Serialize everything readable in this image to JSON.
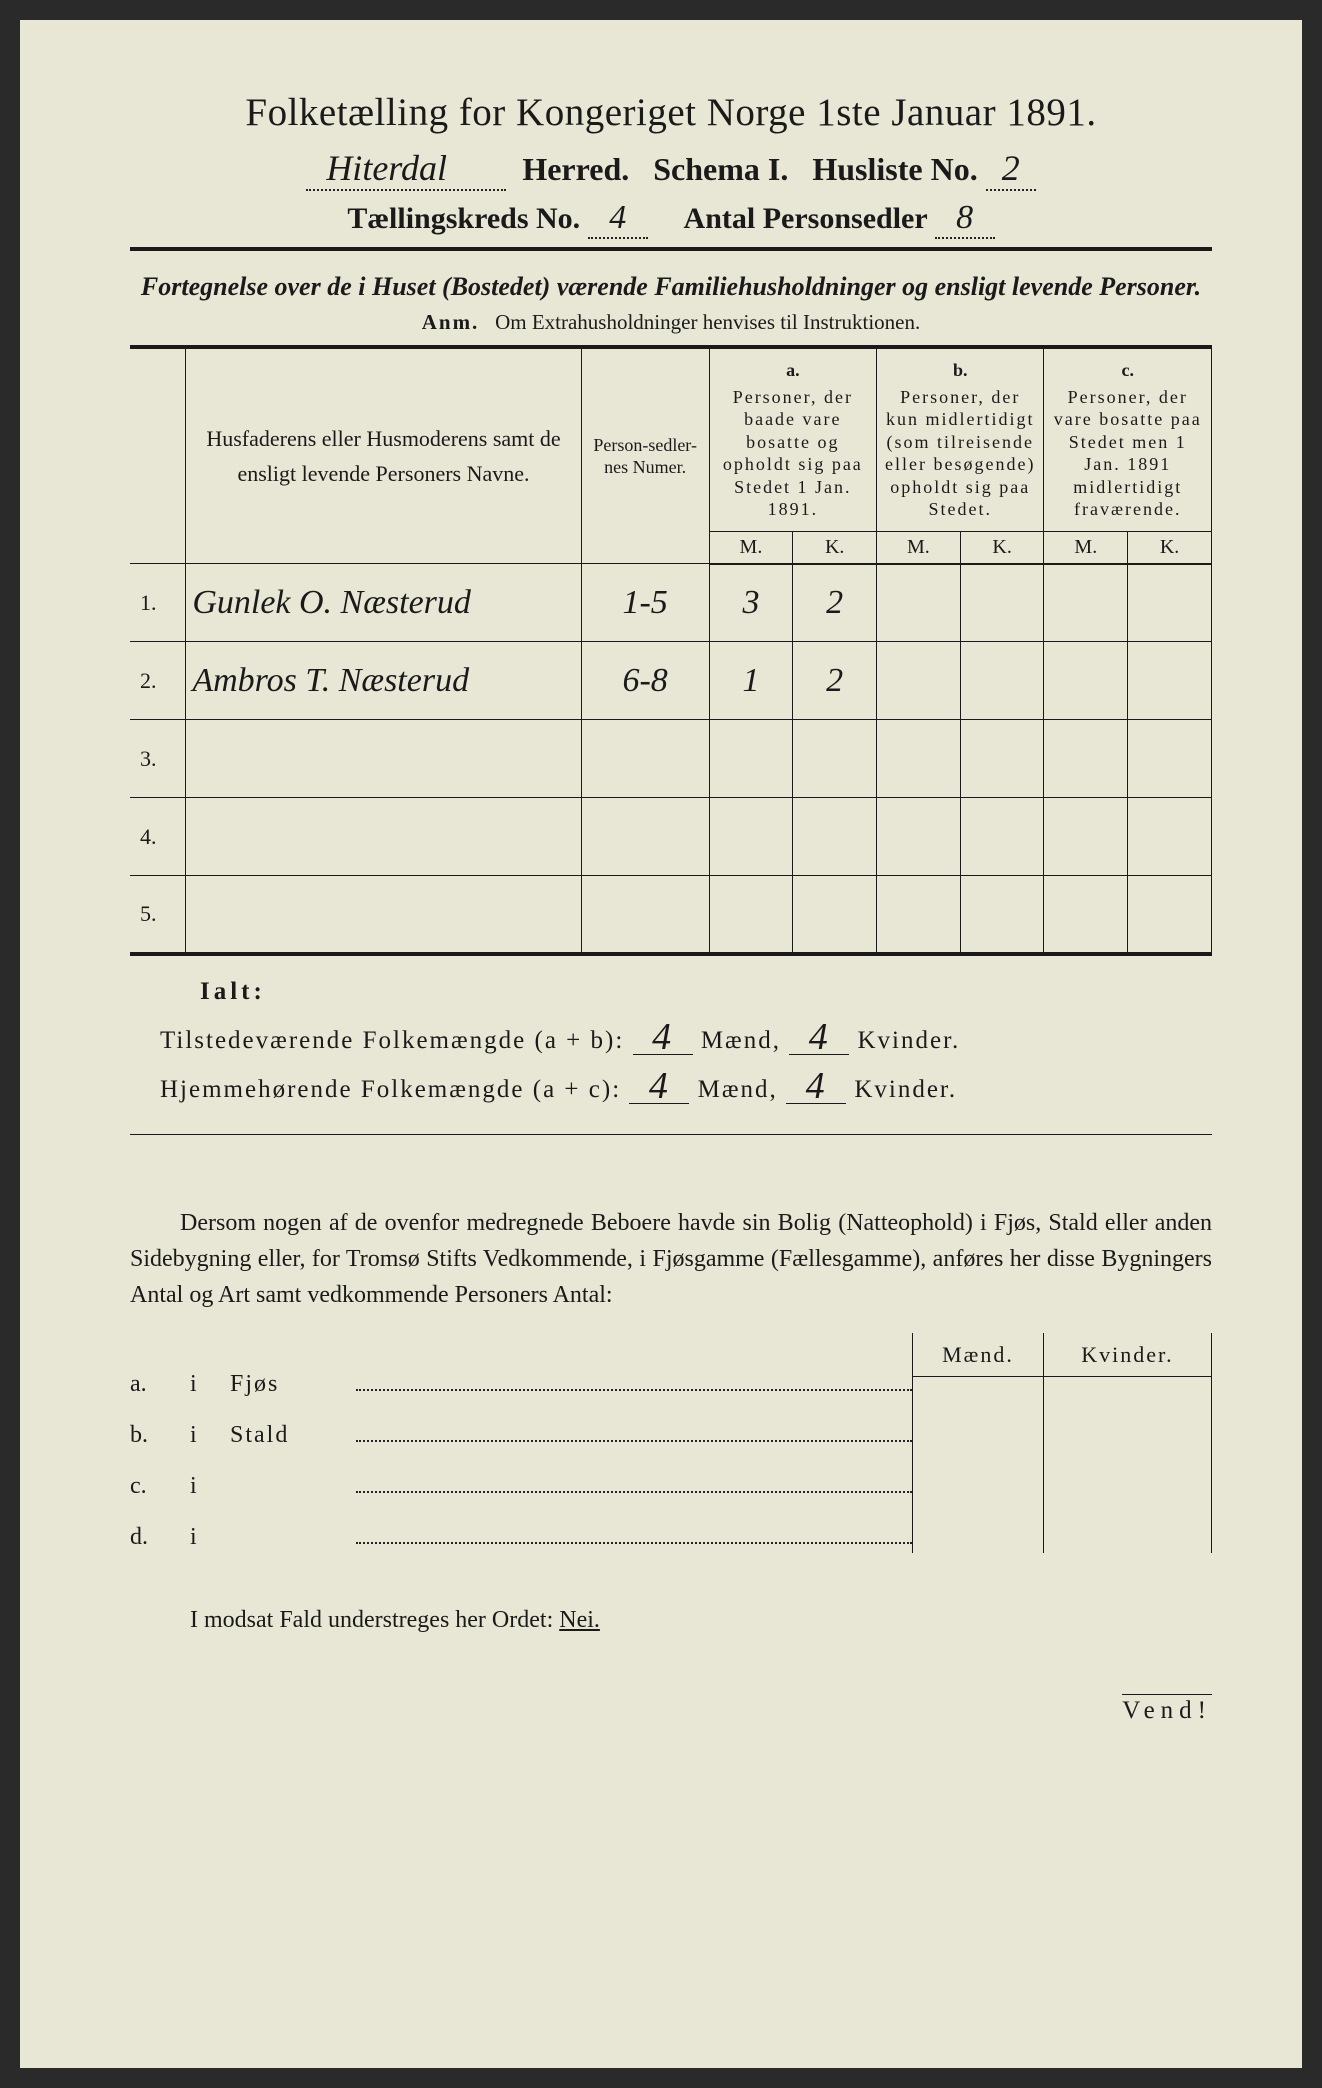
{
  "header": {
    "title": "Folketælling for Kongeriget Norge 1ste Januar 1891.",
    "herred_value": "Hiterdal",
    "herred_label": "Herred.",
    "schema_label": "Schema I.",
    "husliste_label": "Husliste No.",
    "husliste_value": "2",
    "kreds_label": "Tællingskreds No.",
    "kreds_value": "4",
    "personsedler_label": "Antal Personsedler",
    "personsedler_value": "8"
  },
  "fortegnelse": "Fortegnelse over de i Huset (Bostedet) værende Familiehusholdninger og ensligt levende Personer.",
  "anm": {
    "label": "Anm.",
    "text": "Om Extrahusholdninger henvises til Instruktionen."
  },
  "table": {
    "col_names": "Husfaderens eller Husmoderens samt de ensligt levende Personers Navne.",
    "col_sedler": "Person-sedler-nes Numer.",
    "col_a_label": "a.",
    "col_a_text": "Personer, der baade vare bosatte og opholdt sig paa Stedet 1 Jan. 1891.",
    "col_b_label": "b.",
    "col_b_text": "Personer, der kun midlertidigt (som tilreisende eller besøgende) opholdt sig paa Stedet.",
    "col_c_label": "c.",
    "col_c_text": "Personer, der vare bosatte paa Stedet men 1 Jan. 1891 midlertidigt fraværende.",
    "m": "M.",
    "k": "K.",
    "rows": [
      {
        "num": "1.",
        "name": "Gunlek O. Næsterud",
        "sedler": "1-5",
        "am": "3",
        "ak": "2",
        "bm": "",
        "bk": "",
        "cm": "",
        "ck": ""
      },
      {
        "num": "2.",
        "name": "Ambros T. Næsterud",
        "sedler": "6-8",
        "am": "1",
        "ak": "2",
        "bm": "",
        "bk": "",
        "cm": "",
        "ck": ""
      },
      {
        "num": "3.",
        "name": "",
        "sedler": "",
        "am": "",
        "ak": "",
        "bm": "",
        "bk": "",
        "cm": "",
        "ck": ""
      },
      {
        "num": "4.",
        "name": "",
        "sedler": "",
        "am": "",
        "ak": "",
        "bm": "",
        "bk": "",
        "cm": "",
        "ck": ""
      },
      {
        "num": "5.",
        "name": "",
        "sedler": "",
        "am": "",
        "ak": "",
        "bm": "",
        "bk": "",
        "cm": "",
        "ck": ""
      }
    ]
  },
  "ialt": {
    "label": "Ialt:",
    "line1_label": "Tilstedeværende Folkemængde (a + b):",
    "line1_m": "4",
    "line1_k": "4",
    "line2_label": "Hjemmehørende Folkemængde (a + c):",
    "line2_m": "4",
    "line2_k": "4",
    "maend": "Mænd,",
    "kvinder": "Kvinder."
  },
  "dersom": "Dersom nogen af de ovenfor medregnede Beboere havde sin Bolig (Natteophold) i Fjøs, Stald eller anden Sidebygning eller, for Tromsø Stifts Vedkommende, i Fjøsgamme (Fællesgamme), anføres her disse Bygningers Antal og Art samt vedkommende Personers Antal:",
  "bolig": {
    "mk_m": "Mænd.",
    "mk_k": "Kvinder.",
    "rows": [
      {
        "l": "a.",
        "i": "i",
        "t": "Fjøs"
      },
      {
        "l": "b.",
        "i": "i",
        "t": "Stald"
      },
      {
        "l": "c.",
        "i": "i",
        "t": ""
      },
      {
        "l": "d.",
        "i": "i",
        "t": ""
      }
    ]
  },
  "modsat": {
    "text": "I modsat Fald understreges her Ordet:",
    "nei": "Nei."
  },
  "vend": "Vend!",
  "colors": {
    "paper": "#e8e6d4",
    "ink": "#1a1a1a",
    "handwriting": "#2a2a3a"
  }
}
